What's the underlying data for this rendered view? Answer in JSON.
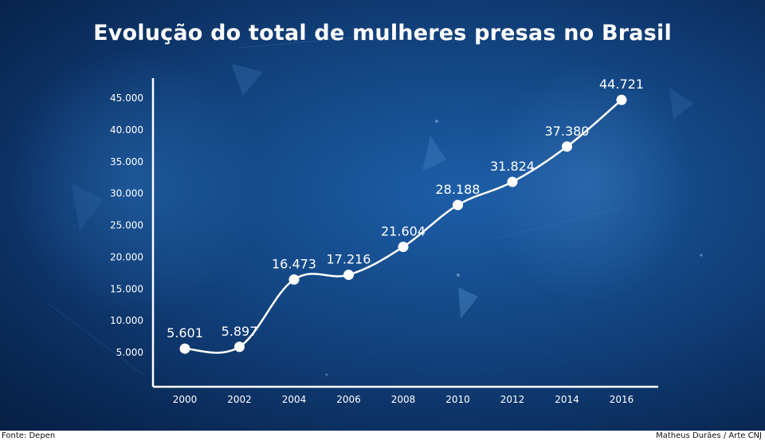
{
  "title": "Evolução do total de mulheres presas no Brasil",
  "source": "Fonte: Depen",
  "credit": "Matheus Durães / Arte CNJ",
  "colors": {
    "line": "#ffffff",
    "text": "#ffffff",
    "bg": "#12437f"
  },
  "chart_data": {
    "type": "line",
    "title": "Evolução do total de mulheres presas no Brasil",
    "xlabel": "",
    "ylabel": "",
    "x": [
      "2000",
      "2002",
      "2004",
      "2006",
      "2008",
      "2010",
      "2012",
      "2014",
      "2016"
    ],
    "series": [
      {
        "values": [
          5601,
          5897,
          16473,
          17216,
          21604,
          28188,
          31824,
          37380,
          44721
        ],
        "labels": [
          "5.601",
          "5.897",
          "16.473",
          "17.216",
          "21.604",
          "28.188",
          "31.824",
          "37.380",
          "44.721"
        ]
      }
    ],
    "yticks": [
      5000,
      10000,
      15000,
      20000,
      25000,
      30000,
      35000,
      40000,
      45000
    ],
    "ytick_labels": [
      "5.000",
      "10.000",
      "15.000",
      "20.000",
      "25.000",
      "30.000",
      "35.000",
      "40.000",
      "45.000"
    ],
    "ylim": [
      0,
      47000
    ],
    "grid": false,
    "legend": "none"
  }
}
